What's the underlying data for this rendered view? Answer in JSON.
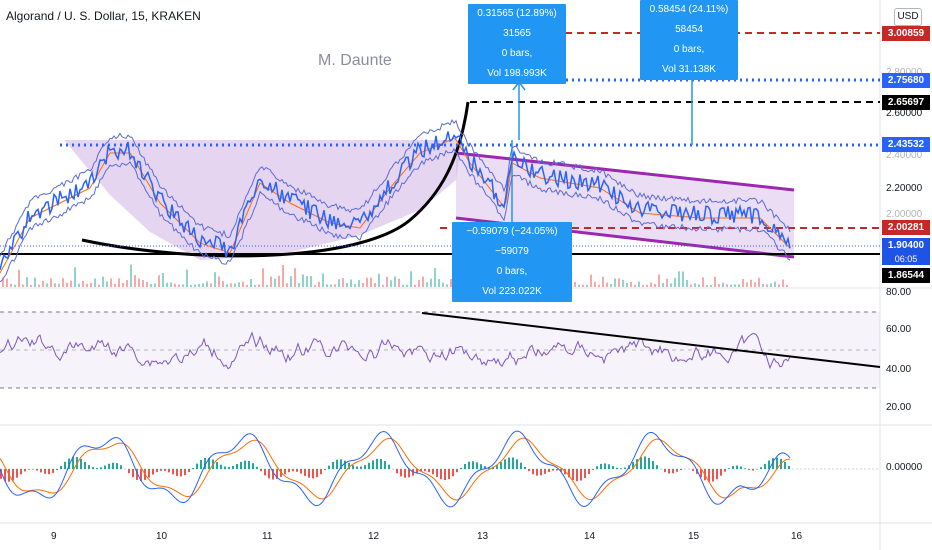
{
  "header": {
    "title": "Algorand / U. S. Dollar, 15, KRAKEN"
  },
  "author": "M. Daunte",
  "currency_button": "USD",
  "price_axis": {
    "ticks": [
      "2.80000",
      "2.60000",
      "2.40000",
      "2.20000",
      "2.00000"
    ],
    "tags": {
      "red_top": "3.00859",
      "blue_top": "2.75680",
      "black_dash": "2.65697",
      "blue_mid": "2.43532",
      "red_mid": "2.00281",
      "last_price": "1.90400",
      "countdown": "06:05",
      "black_support": "1.86544"
    }
  },
  "rsi_axis": {
    "ticks": [
      "80.00",
      "60.00",
      "40.00",
      "20.00"
    ]
  },
  "macd_axis": {
    "ticks": [
      "0.00000"
    ]
  },
  "time_axis": {
    "labels": [
      "9",
      "10",
      "11",
      "12",
      "13",
      "14",
      "15",
      "16"
    ]
  },
  "notes": {
    "note_a": {
      "line1": "0.31565 (12.89%) 31565",
      "line2": "0 bars,",
      "line3": "Vol 198.993K"
    },
    "note_b": {
      "line1": "0.58454 (24.11%) 58454",
      "line2": "0 bars,",
      "line3": "Vol 31.138K"
    },
    "note_c": {
      "line1": "−0.59079 (−24.05%) −59079",
      "line2": "0 bars,",
      "line3": "Vol 223.022K"
    }
  },
  "colors": {
    "price_line": "#2962ff",
    "rsi_line": "#7e57c2",
    "macd_fast": "#2962ff",
    "macd_signal": "#ff6d00",
    "hist_up": "#26a69a",
    "hist_down": "#ef5350",
    "pattern_fill": "#d1b3e6",
    "red_level": "#c62828",
    "blue_level": "#2962ff"
  }
}
